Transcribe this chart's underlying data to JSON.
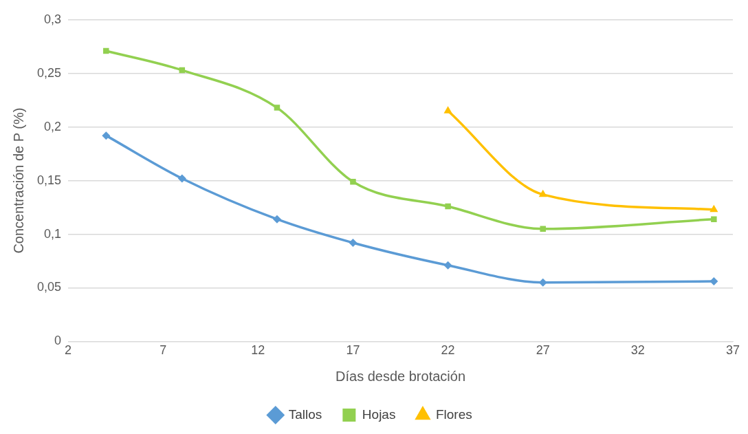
{
  "chart_data": {
    "type": "line",
    "xlabel": "Días desde brotación",
    "ylabel": "Concentración de P (%)",
    "x": [
      4,
      8,
      13,
      17,
      22,
      27,
      36
    ],
    "xlim": [
      2,
      37
    ],
    "xticks": [
      2,
      7,
      12,
      17,
      22,
      27,
      32,
      37
    ],
    "ylim": [
      0,
      0.3
    ],
    "yticks": [
      {
        "value": 0,
        "label": "0"
      },
      {
        "value": 0.05,
        "label": "0,05"
      },
      {
        "value": 0.1,
        "label": "0,1"
      },
      {
        "value": 0.15,
        "label": "0,15"
      },
      {
        "value": 0.2,
        "label": "0,2"
      },
      {
        "value": 0.25,
        "label": "0,25"
      },
      {
        "value": 0.3,
        "label": "0,3"
      }
    ],
    "grid": "y",
    "legend": "bottom",
    "series": [
      {
        "name": "Tallos",
        "color": "#5b9bd5",
        "marker": "diamond",
        "values": [
          0.192,
          0.152,
          0.114,
          0.092,
          0.071,
          0.055,
          0.056
        ]
      },
      {
        "name": "Hojas",
        "color": "#92d050",
        "marker": "square",
        "values": [
          0.271,
          0.253,
          0.218,
          0.149,
          0.126,
          0.105,
          0.114
        ]
      },
      {
        "name": "Flores",
        "color": "#ffc000",
        "marker": "triangle",
        "values": [
          null,
          null,
          null,
          null,
          0.215,
          0.137,
          0.123
        ]
      }
    ]
  }
}
